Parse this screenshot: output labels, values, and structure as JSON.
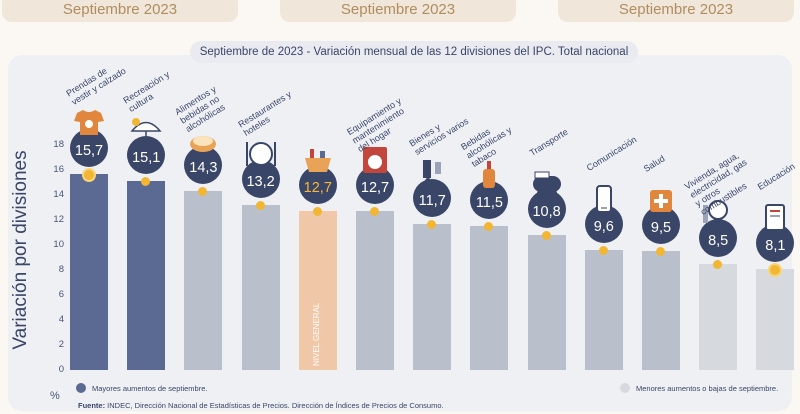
{
  "top_tabs": [
    "Septiembre 2023",
    "Septiembre 2023",
    "Septiembre 2023"
  ],
  "headline": {
    "prefix": "Septiembre de 2023 - ",
    "text": "Variación mensual de las 12 divisiones del IPC. Total nacional"
  },
  "legend": {
    "major": "Mayores aumentos de septiembre.",
    "minor": "Menores aumentos o bajas de septiembre."
  },
  "source": {
    "label": "Fuente:",
    "text": " INDEC, Dirección Nacional de Estadísticas de Precios. Dirección de Índices de Precios de Consumo."
  },
  "colors": {
    "major": "#5b6a92",
    "mid": "#b9c0cc",
    "minor": "#d6d9de",
    "general": "#f0c8a8",
    "badge": "#3a4668",
    "marker": "#f2b632"
  },
  "chart_data": {
    "type": "bar",
    "ylabel": "Variación por divisiones",
    "yunit": "%",
    "ylim": [
      0,
      18
    ],
    "yticks": [
      0,
      2,
      4,
      6,
      8,
      10,
      12,
      14,
      16,
      18
    ],
    "categories": [
      "Prendas de vestir y calzado",
      "Recreación y cultura",
      "Alimentos y bebidas no alcohólicas",
      "Restaurantes y hoteles",
      "Nivel general",
      "Equipamiento y mantenimiento del hogar",
      "Bienes y servicios varios",
      "Bebidas alcohólicas y tabaco",
      "Transporte",
      "Comunicación",
      "Salud",
      "Vivienda, agua, electricidad, gas y otros combustibles",
      "Educación"
    ],
    "labels": [
      "15,7",
      "15,1",
      "14,3",
      "13,2",
      "12,7",
      "12,7",
      "11,7",
      "11,5",
      "10,8",
      "9,6",
      "9,5",
      "8,5",
      "8,1"
    ],
    "values": [
      15.7,
      15.1,
      14.3,
      13.2,
      12.7,
      12.7,
      11.7,
      11.5,
      10.8,
      9.6,
      9.5,
      8.5,
      8.1
    ],
    "groups": [
      "major",
      "major",
      "mid",
      "mid",
      "general",
      "mid",
      "mid",
      "mid",
      "mid",
      "mid",
      "mid",
      "minor",
      "minor"
    ],
    "general_bar_label": "NIVEL GENERAL",
    "icons": [
      "tshirt-icon",
      "umbrella-icon",
      "food-icon",
      "dining-icon",
      "basket-icon",
      "washer-icon",
      "brush-icon",
      "bottle-icon",
      "bus-icon",
      "phone-icon",
      "medical-icon",
      "bulb-icon",
      "book-icon"
    ]
  }
}
